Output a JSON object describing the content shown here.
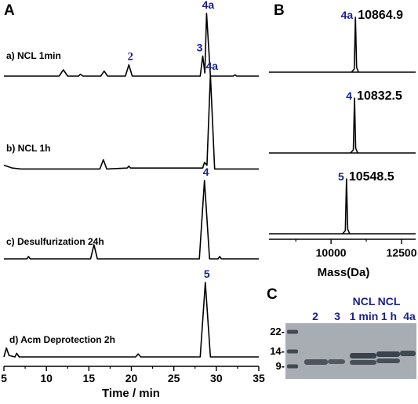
{
  "panels": {
    "A": "A",
    "B": "B",
    "C": "C"
  },
  "colors": {
    "trace": "#000000",
    "peak_label": "#1a1f8c",
    "gel_background": "#a7adb3",
    "gel_band": "#2f3740"
  },
  "chart_data": [
    {
      "type": "line",
      "panel": "A",
      "xlabel": "Time / min",
      "xlim": [
        5,
        35
      ],
      "x_ticks": [
        5,
        10,
        15,
        20,
        25,
        30,
        35
      ],
      "traces": [
        {
          "label": "a) NCL 1min",
          "points": [
            [
              5,
              0.0
            ],
            [
              11.5,
              0.0
            ],
            [
              12.0,
              0.1
            ],
            [
              12.5,
              0.0
            ],
            [
              13.8,
              0.0
            ],
            [
              14.0,
              0.03
            ],
            [
              14.3,
              0.0
            ],
            [
              16.4,
              0.0
            ],
            [
              16.8,
              0.08
            ],
            [
              17.2,
              0.0
            ],
            [
              19.3,
              0.0
            ],
            [
              19.7,
              0.18
            ],
            [
              20.1,
              0.0
            ],
            [
              28.1,
              0.0
            ],
            [
              28.4,
              0.32
            ],
            [
              28.65,
              0.05
            ],
            [
              28.85,
              1.0
            ],
            [
              29.3,
              0.0
            ],
            [
              32.0,
              0.0
            ],
            [
              32.2,
              0.02
            ],
            [
              32.4,
              0.0
            ],
            [
              35,
              0.0
            ]
          ],
          "peak_labels": [
            {
              "text": "2",
              "x": 19.7
            },
            {
              "text": "3",
              "x": 28.4
            },
            {
              "text": "4a",
              "x": 28.85
            }
          ]
        },
        {
          "label": "b) NCL 1h",
          "points": [
            [
              5,
              0.02
            ],
            [
              6.0,
              -0.01
            ],
            [
              7.0,
              -0.02
            ],
            [
              9.0,
              -0.02
            ],
            [
              12.0,
              -0.02
            ],
            [
              16.3,
              -0.02
            ],
            [
              16.7,
              0.08
            ],
            [
              17.1,
              -0.02
            ],
            [
              19.5,
              -0.01
            ],
            [
              19.7,
              0.01
            ],
            [
              19.9,
              -0.01
            ],
            [
              28.4,
              -0.01
            ],
            [
              28.6,
              0.05
            ],
            [
              28.9,
              0.02
            ],
            [
              29.3,
              1.0
            ],
            [
              29.8,
              -0.02
            ],
            [
              35,
              -0.02
            ]
          ],
          "peak_labels": [
            {
              "text": "4a",
              "x": 29.3
            }
          ]
        },
        {
          "label": "c) Desulfurization 24h",
          "points": [
            [
              5,
              0.0
            ],
            [
              7.7,
              0.0
            ],
            [
              7.9,
              0.03
            ],
            [
              8.1,
              0.0
            ],
            [
              15.2,
              0.0
            ],
            [
              15.6,
              0.18
            ],
            [
              16.0,
              0.0
            ],
            [
              28.0,
              0.0
            ],
            [
              28.6,
              1.0
            ],
            [
              29.2,
              0.0
            ],
            [
              30.2,
              0.0
            ],
            [
              30.4,
              0.03
            ],
            [
              30.6,
              0.0
            ],
            [
              35,
              0.0
            ]
          ],
          "peak_labels": [
            {
              "text": "4",
              "x": 28.6
            }
          ]
        },
        {
          "label": "d) Acm Deprotection 2h",
          "points": [
            [
              5,
              0.0
            ],
            [
              5.3,
              0.12
            ],
            [
              5.6,
              0.02
            ],
            [
              6.3,
              0.0
            ],
            [
              6.5,
              0.05
            ],
            [
              6.8,
              0.0
            ],
            [
              20.5,
              0.0
            ],
            [
              20.8,
              0.04
            ],
            [
              21.1,
              0.0
            ],
            [
              28.1,
              0.0
            ],
            [
              28.7,
              1.0
            ],
            [
              29.3,
              0.0
            ],
            [
              35,
              0.0
            ]
          ],
          "peak_labels": [
            {
              "text": "5",
              "x": 28.7
            }
          ]
        }
      ]
    },
    {
      "type": "line",
      "panel": "B",
      "xlabel": "Mass(Da)",
      "xlim": [
        7800,
        13000
      ],
      "x_ticks": [
        10000,
        12500
      ],
      "spectra": [
        {
          "compound": "4a",
          "mass": "10864.9",
          "peak_x": 10864.9
        },
        {
          "compound": "4",
          "mass": "10832.5",
          "peak_x": 10832.5
        },
        {
          "compound": "5",
          "mass": "10548.5",
          "peak_x": 10548.5
        }
      ]
    },
    {
      "type": "gel",
      "panel": "C",
      "markers": [
        "22-",
        "14-",
        "9-"
      ],
      "lanes": [
        {
          "label_top": "",
          "label_bottom": "2"
        },
        {
          "label_top": "",
          "label_bottom": "3"
        },
        {
          "label_top": "NCL",
          "label_bottom": "1 min"
        },
        {
          "label_top": "NCL",
          "label_bottom": "1 h"
        },
        {
          "label_top": "",
          "label_bottom": "4a"
        }
      ]
    }
  ]
}
